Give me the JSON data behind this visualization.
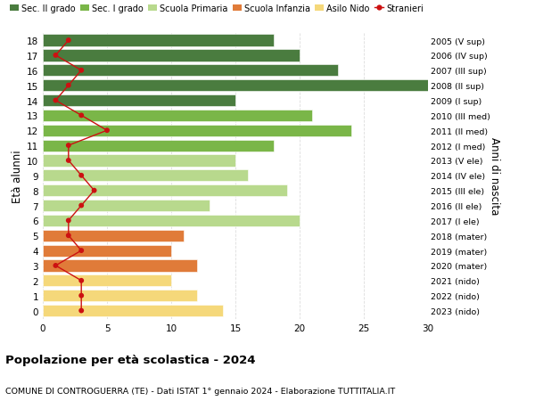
{
  "ages": [
    18,
    17,
    16,
    15,
    14,
    13,
    12,
    11,
    10,
    9,
    8,
    7,
    6,
    5,
    4,
    3,
    2,
    1,
    0
  ],
  "right_labels": [
    "2005 (V sup)",
    "2006 (IV sup)",
    "2007 (III sup)",
    "2008 (II sup)",
    "2009 (I sup)",
    "2010 (III med)",
    "2011 (II med)",
    "2012 (I med)",
    "2013 (V ele)",
    "2014 (IV ele)",
    "2015 (III ele)",
    "2016 (II ele)",
    "2017 (I ele)",
    "2018 (mater)",
    "2019 (mater)",
    "2020 (mater)",
    "2021 (nido)",
    "2022 (nido)",
    "2023 (nido)"
  ],
  "bar_values": [
    18,
    20,
    23,
    30,
    15,
    21,
    24,
    18,
    15,
    16,
    19,
    13,
    20,
    11,
    10,
    12,
    10,
    12,
    14
  ],
  "bar_colors": [
    "#4a7c3f",
    "#4a7c3f",
    "#4a7c3f",
    "#4a7c3f",
    "#4a7c3f",
    "#7ab648",
    "#7ab648",
    "#7ab648",
    "#b8d98d",
    "#b8d98d",
    "#b8d98d",
    "#b8d98d",
    "#b8d98d",
    "#e07b39",
    "#e07b39",
    "#e07b39",
    "#f5d87a",
    "#f5d87a",
    "#f5d87a"
  ],
  "stranieri_values": [
    2,
    1,
    3,
    2,
    1,
    3,
    5,
    2,
    2,
    3,
    4,
    3,
    2,
    2,
    3,
    1,
    3,
    3,
    3
  ],
  "stranieri_color": "#cc1111",
  "title": "Popolazione per età scolastica - 2024",
  "subtitle": "COMUNE DI CONTROGUERRA (TE) - Dati ISTAT 1° gennaio 2024 - Elaborazione TUTTITALIA.IT",
  "ylabel": "Età alunni",
  "right_ylabel": "Anni di nascita",
  "xlim": [
    0,
    30
  ],
  "bg_color": "#ffffff",
  "grid_color": "#dddddd",
  "legend_labels": [
    "Sec. II grado",
    "Sec. I grado",
    "Scuola Primaria",
    "Scuola Infanzia",
    "Asilo Nido",
    "Stranieri"
  ],
  "legend_colors": [
    "#4a7c3f",
    "#7ab648",
    "#b8d98d",
    "#e07b39",
    "#f5d87a",
    "#cc1111"
  ],
  "bar_height": 0.78
}
